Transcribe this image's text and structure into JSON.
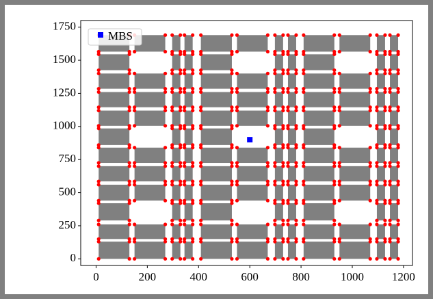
{
  "chart_data": {
    "type": "scatter",
    "xlim": [
      -60,
      1235
    ],
    "ylim": [
      -50,
      1800
    ],
    "xticks": [
      0,
      200,
      400,
      600,
      800,
      1000,
      1200
    ],
    "yticks": [
      0,
      250,
      500,
      750,
      1000,
      1250,
      1500,
      1750
    ],
    "legend": "upper left",
    "building_color": "#808080",
    "corner_color": "#ff0000",
    "blocks": [
      {
        "x": [
          10,
          130
        ],
        "y": [
          [
            0,
            130
          ],
          [
            150,
            260
          ],
          [
            290,
            420
          ],
          [
            440,
            560
          ],
          [
            585,
            700
          ],
          [
            725,
            840
          ],
          [
            860,
            985
          ],
          [
            1005,
            1120
          ],
          [
            1145,
            1260
          ],
          [
            1285,
            1400
          ],
          [
            1425,
            1545
          ],
          [
            1565,
            1690
          ]
        ]
      },
      {
        "x": [
          150,
          270
        ],
        "y": [
          [
            0,
            130
          ],
          [
            150,
            260
          ],
          [
            440,
            560
          ],
          [
            585,
            700
          ],
          [
            725,
            840
          ],
          [
            1005,
            1120
          ],
          [
            1145,
            1260
          ],
          [
            1285,
            1400
          ],
          [
            1565,
            1690
          ]
        ]
      },
      {
        "x": [
          297,
          329
        ],
        "y": [
          [
            0,
            130
          ],
          [
            150,
            260
          ],
          [
            290,
            420
          ],
          [
            440,
            560
          ],
          [
            585,
            700
          ],
          [
            725,
            840
          ],
          [
            860,
            985
          ],
          [
            1005,
            1120
          ],
          [
            1145,
            1260
          ],
          [
            1285,
            1400
          ],
          [
            1425,
            1545
          ],
          [
            1565,
            1690
          ]
        ]
      },
      {
        "x": [
          345,
          377
        ],
        "y": [
          [
            0,
            130
          ],
          [
            150,
            260
          ],
          [
            290,
            420
          ],
          [
            440,
            560
          ],
          [
            585,
            700
          ],
          [
            725,
            840
          ],
          [
            860,
            985
          ],
          [
            1005,
            1120
          ],
          [
            1145,
            1260
          ],
          [
            1285,
            1400
          ],
          [
            1425,
            1545
          ],
          [
            1565,
            1690
          ]
        ]
      },
      {
        "x": [
          409,
          530
        ],
        "y": [
          [
            0,
            130
          ],
          [
            150,
            260
          ],
          [
            290,
            420
          ],
          [
            440,
            560
          ],
          [
            585,
            700
          ],
          [
            725,
            840
          ],
          [
            860,
            985
          ],
          [
            1005,
            1120
          ],
          [
            1145,
            1260
          ],
          [
            1285,
            1400
          ],
          [
            1425,
            1545
          ],
          [
            1565,
            1690
          ]
        ]
      },
      {
        "x": [
          550,
          670
        ],
        "y": [
          [
            0,
            130
          ],
          [
            150,
            260
          ],
          [
            440,
            560
          ],
          [
            585,
            700
          ],
          [
            725,
            840
          ],
          [
            1005,
            1120
          ],
          [
            1145,
            1260
          ],
          [
            1285,
            1400
          ],
          [
            1565,
            1690
          ]
        ]
      },
      {
        "x": [
          698,
          730
        ],
        "y": [
          [
            0,
            130
          ],
          [
            150,
            260
          ],
          [
            290,
            420
          ],
          [
            440,
            560
          ],
          [
            585,
            700
          ],
          [
            725,
            840
          ],
          [
            860,
            985
          ],
          [
            1005,
            1120
          ],
          [
            1145,
            1260
          ],
          [
            1285,
            1400
          ],
          [
            1425,
            1545
          ],
          [
            1565,
            1690
          ]
        ]
      },
      {
        "x": [
          749,
          781
        ],
        "y": [
          [
            0,
            130
          ],
          [
            150,
            260
          ],
          [
            290,
            420
          ],
          [
            440,
            560
          ],
          [
            585,
            700
          ],
          [
            725,
            840
          ],
          [
            860,
            985
          ],
          [
            1005,
            1120
          ],
          [
            1145,
            1260
          ],
          [
            1285,
            1400
          ],
          [
            1425,
            1545
          ],
          [
            1565,
            1690
          ]
        ]
      },
      {
        "x": [
          810,
          930
        ],
        "y": [
          [
            0,
            130
          ],
          [
            150,
            260
          ],
          [
            290,
            420
          ],
          [
            440,
            560
          ],
          [
            585,
            700
          ],
          [
            725,
            840
          ],
          [
            860,
            985
          ],
          [
            1005,
            1120
          ],
          [
            1145,
            1260
          ],
          [
            1285,
            1400
          ],
          [
            1425,
            1545
          ],
          [
            1565,
            1690
          ]
        ]
      },
      {
        "x": [
          950,
          1070
        ],
        "y": [
          [
            0,
            130
          ],
          [
            150,
            260
          ],
          [
            440,
            560
          ],
          [
            585,
            700
          ],
          [
            725,
            840
          ],
          [
            1005,
            1120
          ],
          [
            1145,
            1260
          ],
          [
            1285,
            1400
          ],
          [
            1565,
            1690
          ]
        ]
      },
      {
        "x": [
          1096,
          1128
        ],
        "y": [
          [
            0,
            130
          ],
          [
            150,
            260
          ],
          [
            290,
            420
          ],
          [
            440,
            560
          ],
          [
            585,
            700
          ],
          [
            725,
            840
          ],
          [
            860,
            985
          ],
          [
            1005,
            1120
          ],
          [
            1145,
            1260
          ],
          [
            1285,
            1400
          ],
          [
            1425,
            1545
          ],
          [
            1565,
            1690
          ]
        ]
      },
      {
        "x": [
          1147,
          1179
        ],
        "y": [
          [
            0,
            130
          ],
          [
            150,
            260
          ],
          [
            290,
            420
          ],
          [
            440,
            560
          ],
          [
            585,
            700
          ],
          [
            725,
            840
          ],
          [
            860,
            985
          ],
          [
            1005,
            1120
          ],
          [
            1145,
            1260
          ],
          [
            1285,
            1400
          ],
          [
            1425,
            1545
          ],
          [
            1565,
            1690
          ]
        ]
      }
    ],
    "series": [
      {
        "name": "MBS",
        "color": "#0000ff",
        "x": [
          600
        ],
        "values": [
          900
        ]
      }
    ]
  }
}
